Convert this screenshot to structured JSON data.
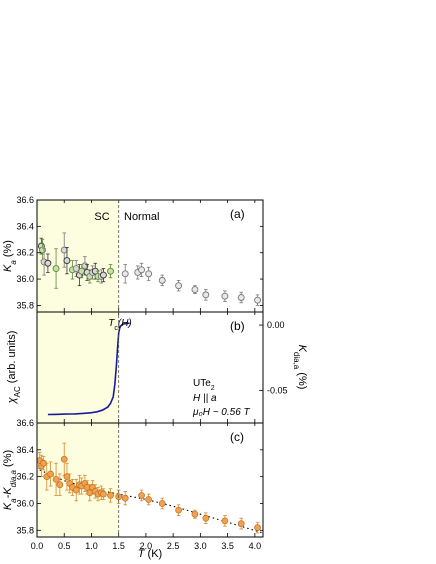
{
  "figure": {
    "shared_xlabel_var": "T",
    "shared_xlabel_unit": " (K)",
    "x_ticks": [
      "0.0",
      "0.5",
      "1.0",
      "1.5",
      "2.0",
      "2.5",
      "3.0",
      "3.5",
      "4.0"
    ],
    "tc_line_x": 1.5,
    "sc_region_color": "#fdfde0",
    "sc_label": "SC",
    "normal_label": "Normal"
  },
  "chart_data": [
    {
      "type": "scatter",
      "panel_label": "(a)",
      "ylabel_var": "K",
      "ylabel_sub": "a",
      "ylabel_unit": " (%)",
      "xlim": [
        0,
        4.15
      ],
      "ylim": [
        35.75,
        36.6
      ],
      "y_ticks": [
        "35.8",
        "36.0",
        "36.2",
        "36.4",
        "36.6"
      ],
      "grid": false,
      "series": [
        {
          "style": "sc-mixed",
          "x": [
            0.08,
            0.1,
            0.13,
            0.2,
            0.35,
            0.5,
            0.55,
            0.65,
            0.72,
            0.78,
            0.82,
            0.88,
            0.92,
            0.97,
            1.02,
            1.07,
            1.12,
            1.18,
            1.22,
            1.35
          ],
          "y": [
            36.25,
            36.22,
            36.13,
            36.12,
            36.08,
            36.22,
            36.14,
            36.07,
            36.08,
            36.03,
            36.06,
            36.1,
            36.05,
            36.02,
            36.05,
            36.06,
            36.02,
            36.02,
            36.03,
            36.06
          ],
          "err": [
            0.06,
            0.08,
            0.1,
            0.07,
            0.15,
            0.13,
            0.1,
            0.07,
            0.06,
            0.08,
            0.05,
            0.07,
            0.06,
            0.05,
            0.05,
            0.06,
            0.04,
            0.05,
            0.05,
            0.05
          ]
        },
        {
          "style": "normal-gray",
          "x": [
            1.62,
            1.85,
            1.92,
            2.05,
            2.3,
            2.6,
            2.9,
            3.1,
            3.45,
            3.75,
            4.05
          ],
          "y": [
            36.04,
            36.05,
            36.07,
            36.04,
            35.99,
            35.95,
            35.92,
            35.88,
            35.87,
            35.86,
            35.84
          ],
          "err": [
            0.07,
            0.05,
            0.05,
            0.05,
            0.04,
            0.04,
            0.03,
            0.04,
            0.04,
            0.04,
            0.04
          ]
        }
      ]
    },
    {
      "type": "line",
      "panel_label": "(b)",
      "ylabel_var": "χ",
      "ylabel_sub": "AC",
      "ylabel_unit": " (arb. units)",
      "right_ylabel_var": "K",
      "right_ylabel_sub": "dia,a",
      "right_ylabel_unit": " (%)",
      "right_ylim": [
        -0.075,
        0.01
      ],
      "right_y_ticks": [
        "0.00",
        "-0.05"
      ],
      "tc_label_var": "T",
      "tc_label_sub": "c",
      "tc_label_rest": "(H)",
      "sample_text": "UTe",
      "sample_sub": "2",
      "field_text": "H || a",
      "magfield_text": "μ₀H ~ 0.56 T",
      "series": [
        {
          "name": "",
          "color": "#1a1aa0",
          "x": [
            0.2,
            0.3,
            0.4,
            0.5,
            0.6,
            0.7,
            0.8,
            0.9,
            1.0,
            1.1,
            1.2,
            1.3,
            1.35,
            1.4,
            1.43,
            1.46,
            1.48,
            1.5,
            1.52,
            1.55,
            1.6,
            1.7
          ],
          "y": [
            -0.0685,
            -0.0684,
            -0.0683,
            -0.0682,
            -0.0681,
            -0.068,
            -0.0678,
            -0.0675,
            -0.0671,
            -0.0664,
            -0.0652,
            -0.0628,
            -0.06,
            -0.055,
            -0.045,
            -0.03,
            -0.017,
            -0.006,
            -0.002,
            0.0,
            0.001,
            0.0015
          ]
        }
      ]
    },
    {
      "type": "scatter",
      "panel_label": "(c)",
      "ylabel_var": "K",
      "ylabel_sub": "a",
      "ylabel_mid": "-K",
      "ylabel_sub2": "dia,a",
      "ylabel_unit": " (%)",
      "xlim": [
        0,
        4.15
      ],
      "ylim": [
        35.75,
        36.6
      ],
      "y_ticks": [
        "35.8",
        "36.0",
        "36.2",
        "36.4",
        "36.6"
      ],
      "marker_color": "#f4a24a",
      "fit_x": [
        0.05,
        0.5,
        1.0,
        1.5,
        2.0,
        2.5,
        3.0,
        3.5,
        4.15
      ],
      "fit_y": [
        36.25,
        36.17,
        36.11,
        36.07,
        36.03,
        35.98,
        35.92,
        35.86,
        35.78
      ],
      "series": [
        {
          "x": [
            0.05,
            0.08,
            0.12,
            0.18,
            0.25,
            0.35,
            0.42,
            0.5,
            0.55,
            0.6,
            0.65,
            0.72,
            0.78,
            0.82,
            0.88,
            0.92,
            0.97,
            1.02,
            1.07,
            1.12,
            1.18,
            1.22,
            1.35,
            1.5,
            1.62,
            1.92,
            2.05,
            2.3,
            2.6,
            2.9,
            3.1,
            3.45,
            3.75,
            4.05
          ],
          "y": [
            36.32,
            36.28,
            36.3,
            36.2,
            36.22,
            36.18,
            36.14,
            36.33,
            36.2,
            36.15,
            36.12,
            36.1,
            36.14,
            36.13,
            36.15,
            36.12,
            36.08,
            36.12,
            36.09,
            36.07,
            36.08,
            36.07,
            36.06,
            36.05,
            36.04,
            36.06,
            36.03,
            36.0,
            35.95,
            35.92,
            35.89,
            35.87,
            35.85,
            35.82
          ],
          "err": [
            0.06,
            0.08,
            0.05,
            0.1,
            0.09,
            0.12,
            0.08,
            0.12,
            0.1,
            0.07,
            0.06,
            0.08,
            0.07,
            0.06,
            0.06,
            0.05,
            0.06,
            0.05,
            0.05,
            0.05,
            0.05,
            0.04,
            0.05,
            0.05,
            0.05,
            0.04,
            0.04,
            0.04,
            0.04,
            0.03,
            0.04,
            0.04,
            0.04,
            0.04
          ]
        }
      ]
    }
  ]
}
